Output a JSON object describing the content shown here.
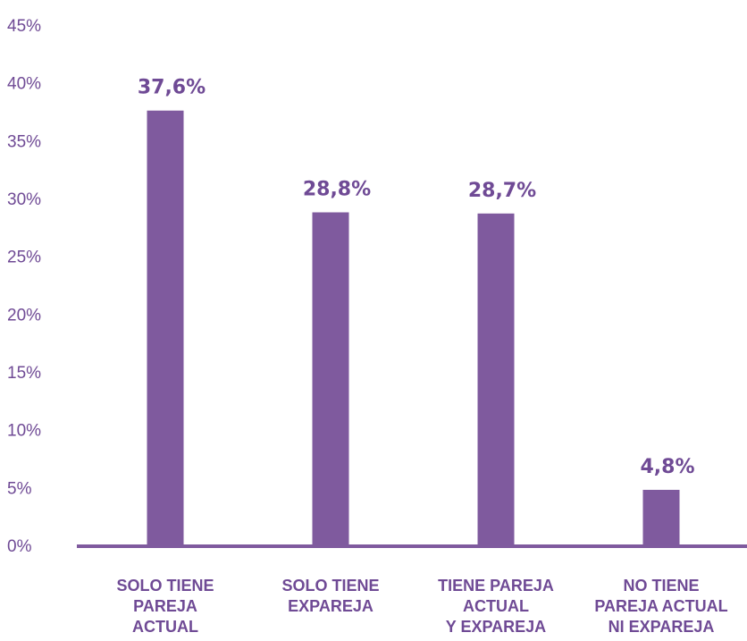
{
  "chart_data": {
    "type": "bar",
    "categories": [
      [
        "SOLO TIENE",
        "PAREJA",
        "ACTUAL"
      ],
      [
        "SOLO TIENE",
        "EXPAREJA"
      ],
      [
        "TIENE PAREJA",
        "ACTUAL",
        "Y EXPAREJA"
      ],
      [
        "NO TIENE",
        "PAREJA ACTUAL",
        "NI  EXPAREJA"
      ]
    ],
    "values": [
      37.6,
      28.8,
      28.7,
      4.8
    ],
    "data_labels": [
      "37,6%",
      "28,8%",
      "28,7%",
      "4,8%"
    ],
    "yticks": [
      "0%",
      "5%",
      "10%",
      "15%",
      "20%",
      "25%",
      "30%",
      "35%",
      "40%",
      "45%"
    ],
    "ylim": [
      0,
      45
    ],
    "grid": false,
    "colors": {
      "bar": "#7f5a9e",
      "axis": "#7f5a9e",
      "tick_text": "#6f4a95",
      "label_text": "#6f4a95"
    }
  }
}
